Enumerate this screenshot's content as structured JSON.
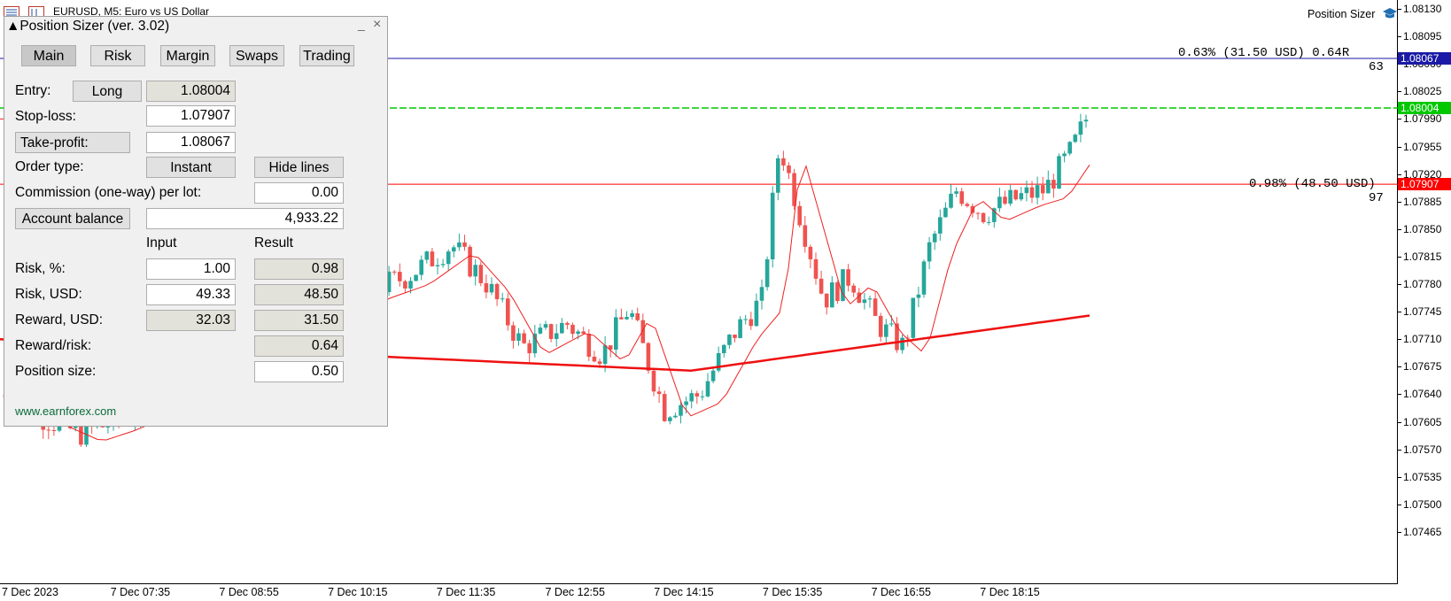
{
  "chart": {
    "symbol_title": "EURUSD, M5:  Euro vs US Dollar",
    "ea_name": "Position Sizer",
    "price_labels": [
      "1.08130",
      "1.08095",
      "1.08060",
      "1.08025",
      "1.07990",
      "1.07955",
      "1.07920",
      "1.07885",
      "1.07850",
      "1.07815",
      "1.07780",
      "1.07745",
      "1.07710",
      "1.07675",
      "1.07640",
      "1.07605",
      "1.07570",
      "1.07535",
      "1.07500",
      "1.07465"
    ],
    "time_labels": [
      "7 Dec 2023",
      "7 Dec 07:35",
      "7 Dec 08:55",
      "7 Dec 10:15",
      "7 Dec 11:35",
      "7 Dec 12:55",
      "7 Dec 14:15",
      "7 Dec 15:35",
      "7 Dec 16:55",
      "7 Dec 18:15"
    ],
    "tp_line": {
      "price": "1.08067",
      "color": "#1a1aa6",
      "annotation": "0.63% (31.50 USD) 0.64R",
      "sub": "63"
    },
    "entry_line": {
      "price": "1.08004",
      "color": "#00c800"
    },
    "sl_line": {
      "price": "1.07907",
      "color": "#ff0000",
      "annotation": "0.98% (48.50 USD)",
      "sub": "97"
    },
    "bull_color": "#26a69a",
    "bear_color": "#ef5350"
  },
  "panel": {
    "title": "Position Sizer (ver. 3.02)",
    "minimize": "_",
    "close": "×",
    "tabs": [
      "Main",
      "Risk",
      "Margin",
      "Swaps",
      "Trading"
    ],
    "entry_label": "Entry:",
    "direction_button": "Long",
    "entry_value": "1.08004",
    "stoploss_label": "Stop-loss:",
    "stoploss_value": "1.07907",
    "takeprofit_button": "Take-profit:",
    "takeprofit_value": "1.08067",
    "order_type_label": "Order type:",
    "order_type_button": "Instant",
    "hide_lines_button": "Hide lines",
    "commission_label": "Commission (one-way) per lot:",
    "commission_value": "0.00",
    "account_balance_button": "Account balance",
    "account_balance_value": "4,933.22",
    "col_input": "Input",
    "col_result": "Result",
    "risk_pct_label": "Risk, %:",
    "risk_pct_input": "1.00",
    "risk_pct_result": "0.98",
    "risk_usd_label": "Risk, USD:",
    "risk_usd_input": "49.33",
    "risk_usd_result": "48.50",
    "reward_usd_label": "Reward, USD:",
    "reward_usd_input": "32.03",
    "reward_usd_result": "31.50",
    "rr_label": "Reward/risk:",
    "rr_result": "0.64",
    "position_size_label": "Position size:",
    "position_size_value": "0.50",
    "website": "www.earnforex.com"
  }
}
